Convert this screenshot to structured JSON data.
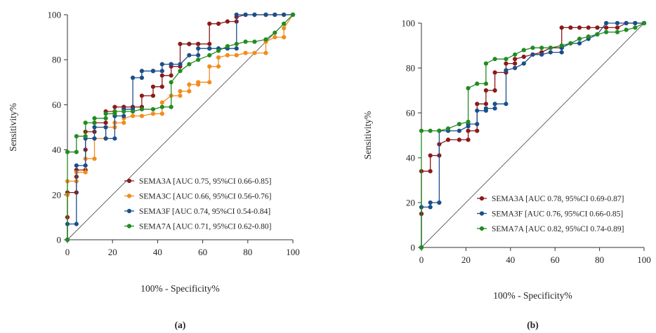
{
  "chart_data": [
    {
      "type": "line",
      "panel_label": "(a)",
      "xlabel": "100% - Specificity%",
      "ylabel": "Sensitivity%",
      "xlim": [
        0,
        100
      ],
      "ylim": [
        0,
        100
      ],
      "xticks": [
        "0",
        "20",
        "40",
        "60",
        "80",
        "100"
      ],
      "yticks": [
        "0",
        "20",
        "40",
        "60",
        "80",
        "100"
      ],
      "grid": false,
      "reference_line": true,
      "legend_position": "bottom-right",
      "series": [
        {
          "name": "SEMA3A [AUC 0.75, 95%CI 0.66-0.85]",
          "color": "#8b1a1a",
          "x": [
            0,
            0,
            0,
            0,
            4,
            4,
            4,
            8,
            8,
            8,
            12,
            12,
            17,
            17,
            21,
            21,
            25,
            25,
            29,
            29,
            33,
            33,
            38,
            38,
            42,
            42,
            46,
            46,
            50,
            50,
            54,
            54,
            58,
            58,
            63,
            63,
            67,
            71,
            75,
            75,
            79,
            83,
            88,
            92,
            96,
            100
          ],
          "y": [
            0,
            10,
            20,
            21,
            21,
            28,
            31,
            31,
            40,
            48,
            48,
            52,
            52,
            57,
            57,
            59,
            59,
            59,
            59,
            59,
            59,
            64,
            64,
            68,
            68,
            73,
            73,
            77,
            77,
            87,
            87,
            87,
            87,
            87,
            87,
            96,
            96,
            97,
            97,
            99,
            100,
            100,
            100,
            100,
            100,
            100
          ]
        },
        {
          "name": "SEMA3C [AUC 0.66, 95%CI 0.56-0.76]",
          "color": "#f28c1e",
          "x": [
            0,
            0,
            0,
            4,
            4,
            8,
            8,
            12,
            12,
            17,
            17,
            21,
            21,
            25,
            25,
            29,
            33,
            38,
            42,
            42,
            46,
            50,
            50,
            54,
            54,
            58,
            58,
            63,
            63,
            67,
            67,
            71,
            75,
            79,
            83,
            88,
            88,
            92,
            96,
            96,
            100
          ],
          "y": [
            0,
            20,
            26,
            26,
            30,
            30,
            36,
            36,
            45,
            45,
            50,
            50,
            52,
            52,
            54,
            55,
            55,
            56,
            56,
            61,
            64,
            64,
            66,
            66,
            69,
            69,
            70,
            70,
            77,
            77,
            81,
            82,
            82,
            83,
            83,
            83,
            88,
            90,
            90,
            94,
            100
          ]
        },
        {
          "name": "SEMA3F [AUC 0.74, 95%CI 0.54-0.84]",
          "color": "#1a4f8b",
          "x": [
            0,
            0,
            4,
            4,
            8,
            8,
            12,
            12,
            17,
            17,
            21,
            21,
            25,
            25,
            29,
            29,
            33,
            33,
            38,
            38,
            42,
            42,
            46,
            46,
            50,
            54,
            58,
            58,
            63,
            63,
            67,
            71,
            75,
            75,
            79,
            83,
            88,
            92,
            96,
            100
          ],
          "y": [
            0,
            7,
            7,
            33,
            33,
            45,
            45,
            50,
            50,
            45,
            45,
            55,
            55,
            58,
            58,
            72,
            72,
            75,
            75,
            75,
            75,
            78,
            78,
            78,
            78,
            82,
            82,
            85,
            85,
            85,
            85,
            85,
            85,
            100,
            100,
            100,
            100,
            100,
            100,
            100
          ]
        },
        {
          "name": "SEMA7A [AUC 0.71, 95%CI 0.62-0.80]",
          "color": "#228b22",
          "x": [
            0,
            0,
            4,
            4,
            8,
            8,
            12,
            12,
            17,
            17,
            21,
            21,
            25,
            29,
            33,
            38,
            42,
            46,
            46,
            50,
            54,
            58,
            63,
            67,
            71,
            75,
            79,
            83,
            88,
            92,
            96,
            100
          ],
          "y": [
            0,
            39,
            39,
            46,
            46,
            52,
            52,
            54,
            54,
            56,
            56,
            57,
            57,
            57,
            58,
            58,
            59,
            59,
            70,
            75,
            78,
            80,
            82,
            84,
            86,
            87,
            88,
            88,
            89,
            92,
            96,
            100
          ]
        }
      ]
    },
    {
      "type": "line",
      "panel_label": "(b)",
      "xlabel": "100% - Specificity%",
      "ylabel": "Sensitivity%",
      "xlim": [
        0,
        100
      ],
      "ylim": [
        0,
        100
      ],
      "xticks": [
        "0",
        "20",
        "40",
        "60",
        "80",
        "100"
      ],
      "yticks": [
        "0",
        "20",
        "40",
        "60",
        "80",
        "100"
      ],
      "grid": false,
      "reference_line": true,
      "legend_position": "bottom-right",
      "series": [
        {
          "name": "SEMA3A [AUC 0.78, 95%CI 0.69-0.87]",
          "color": "#8b1a1a",
          "x": [
            0,
            0,
            0,
            4,
            4,
            8,
            8,
            12,
            17,
            21,
            21,
            25,
            25,
            29,
            29,
            33,
            33,
            38,
            38,
            42,
            42,
            46,
            50,
            54,
            58,
            63,
            63,
            67,
            71,
            75,
            79,
            83,
            88,
            92,
            96,
            100
          ],
          "y": [
            0,
            15,
            34,
            34,
            41,
            41,
            46,
            48,
            48,
            48,
            52,
            52,
            64,
            64,
            70,
            70,
            78,
            78,
            82,
            82,
            84,
            85,
            86,
            87,
            89,
            89,
            98,
            98,
            98,
            98,
            98,
            98,
            98,
            100,
            100,
            100
          ]
        },
        {
          "name": "SEMA3F [AUC 0.76, 95%CI 0.66-0.85]",
          "color": "#1a4f8b",
          "x": [
            0,
            0,
            4,
            4,
            8,
            8,
            12,
            17,
            21,
            21,
            25,
            25,
            29,
            29,
            33,
            33,
            38,
            38,
            42,
            46,
            50,
            54,
            58,
            63,
            63,
            67,
            71,
            75,
            79,
            83,
            88,
            92,
            96,
            100
          ],
          "y": [
            0,
            18,
            18,
            20,
            20,
            52,
            52,
            52,
            54,
            55,
            55,
            61,
            61,
            62,
            62,
            64,
            64,
            79,
            80,
            82,
            86,
            86,
            87,
            87,
            89,
            91,
            91,
            93,
            95,
            100,
            100,
            100,
            100,
            100
          ]
        },
        {
          "name": "SEMA7A [AUC 0.82, 95%CI 0.74-0.89]",
          "color": "#228b22",
          "x": [
            0,
            0,
            4,
            8,
            8,
            12,
            17,
            21,
            21,
            25,
            29,
            29,
            33,
            38,
            42,
            46,
            50,
            54,
            58,
            63,
            67,
            71,
            75,
            79,
            83,
            88,
            92,
            96,
            100
          ],
          "y": [
            0,
            52,
            52,
            52,
            52,
            53,
            55,
            56,
            71,
            73,
            73,
            82,
            84,
            84,
            86,
            88,
            89,
            89,
            89,
            90,
            91,
            93,
            94,
            95,
            96,
            96,
            97,
            98,
            100
          ]
        }
      ]
    }
  ]
}
